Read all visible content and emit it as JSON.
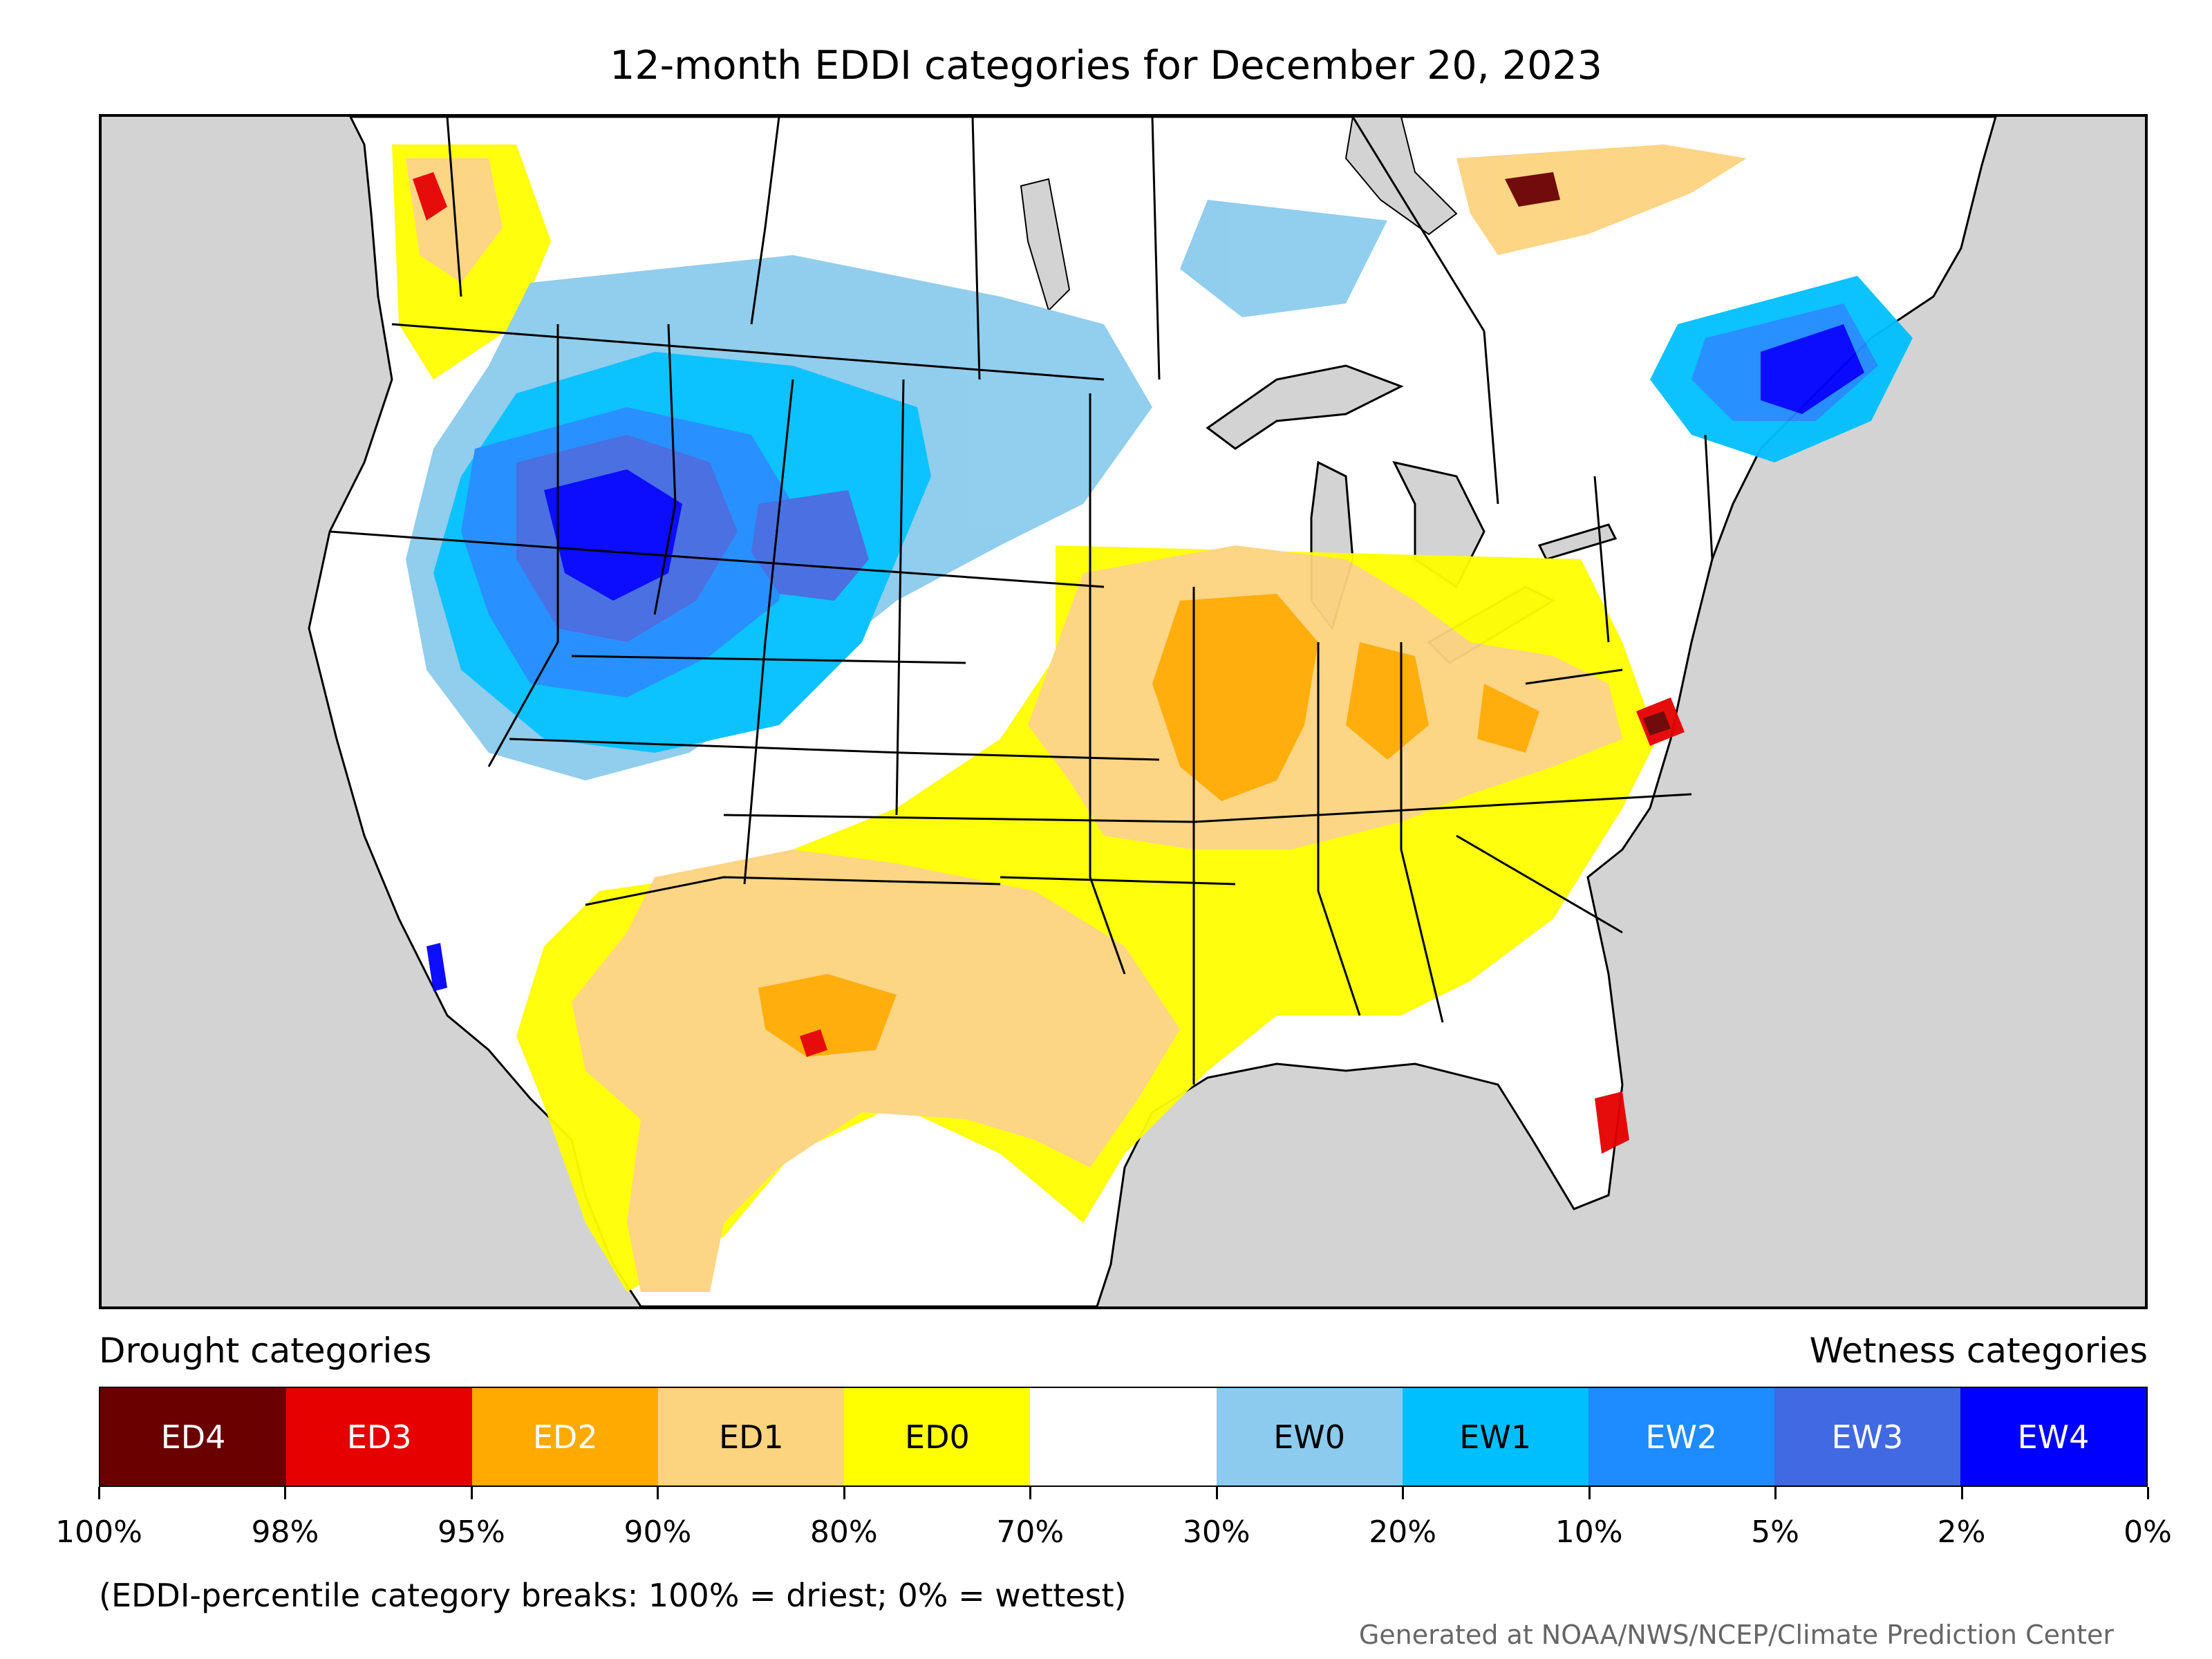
{
  "title": "12-month EDDI categories for December 20, 2023",
  "legend": {
    "left_heading": "Drought categories",
    "right_heading": "Wetness categories",
    "categories": [
      {
        "label": "ED4",
        "color": "#6b0000",
        "text_color": "#ffffff"
      },
      {
        "label": "ED3",
        "color": "#e60000",
        "text_color": "#ffffff"
      },
      {
        "label": "ED2",
        "color": "#ffaa00",
        "text_color": "#ffffff"
      },
      {
        "label": "ED1",
        "color": "#fcd37f",
        "text_color": "#000000"
      },
      {
        "label": "ED0",
        "color": "#ffff00",
        "text_color": "#000000"
      },
      {
        "label": "",
        "color": "#ffffff",
        "text_color": "#000000"
      },
      {
        "label": "EW0",
        "color": "#8ccbed",
        "text_color": "#000000"
      },
      {
        "label": "EW1",
        "color": "#00bfff",
        "text_color": "#000000"
      },
      {
        "label": "EW2",
        "color": "#1e8bff",
        "text_color": "#ffffff"
      },
      {
        "label": "EW3",
        "color": "#4169e1",
        "text_color": "#ffffff"
      },
      {
        "label": "EW4",
        "color": "#0000ff",
        "text_color": "#ffffff"
      }
    ],
    "tick_labels": [
      "100%",
      "98%",
      "95%",
      "90%",
      "80%",
      "70%",
      "30%",
      "20%",
      "10%",
      "5%",
      "2%",
      "0%"
    ]
  },
  "note": "(EDDI-percentile category breaks: 100% = driest; 0% = wettest)",
  "credit": "Generated at NOAA/NWS/NCEP/Climate Prediction Center",
  "map": {
    "ocean_color": "#d3d3d3",
    "land_color": "#ffffff",
    "region": "Contiguous United States with southern Canada and northern Mexico"
  }
}
